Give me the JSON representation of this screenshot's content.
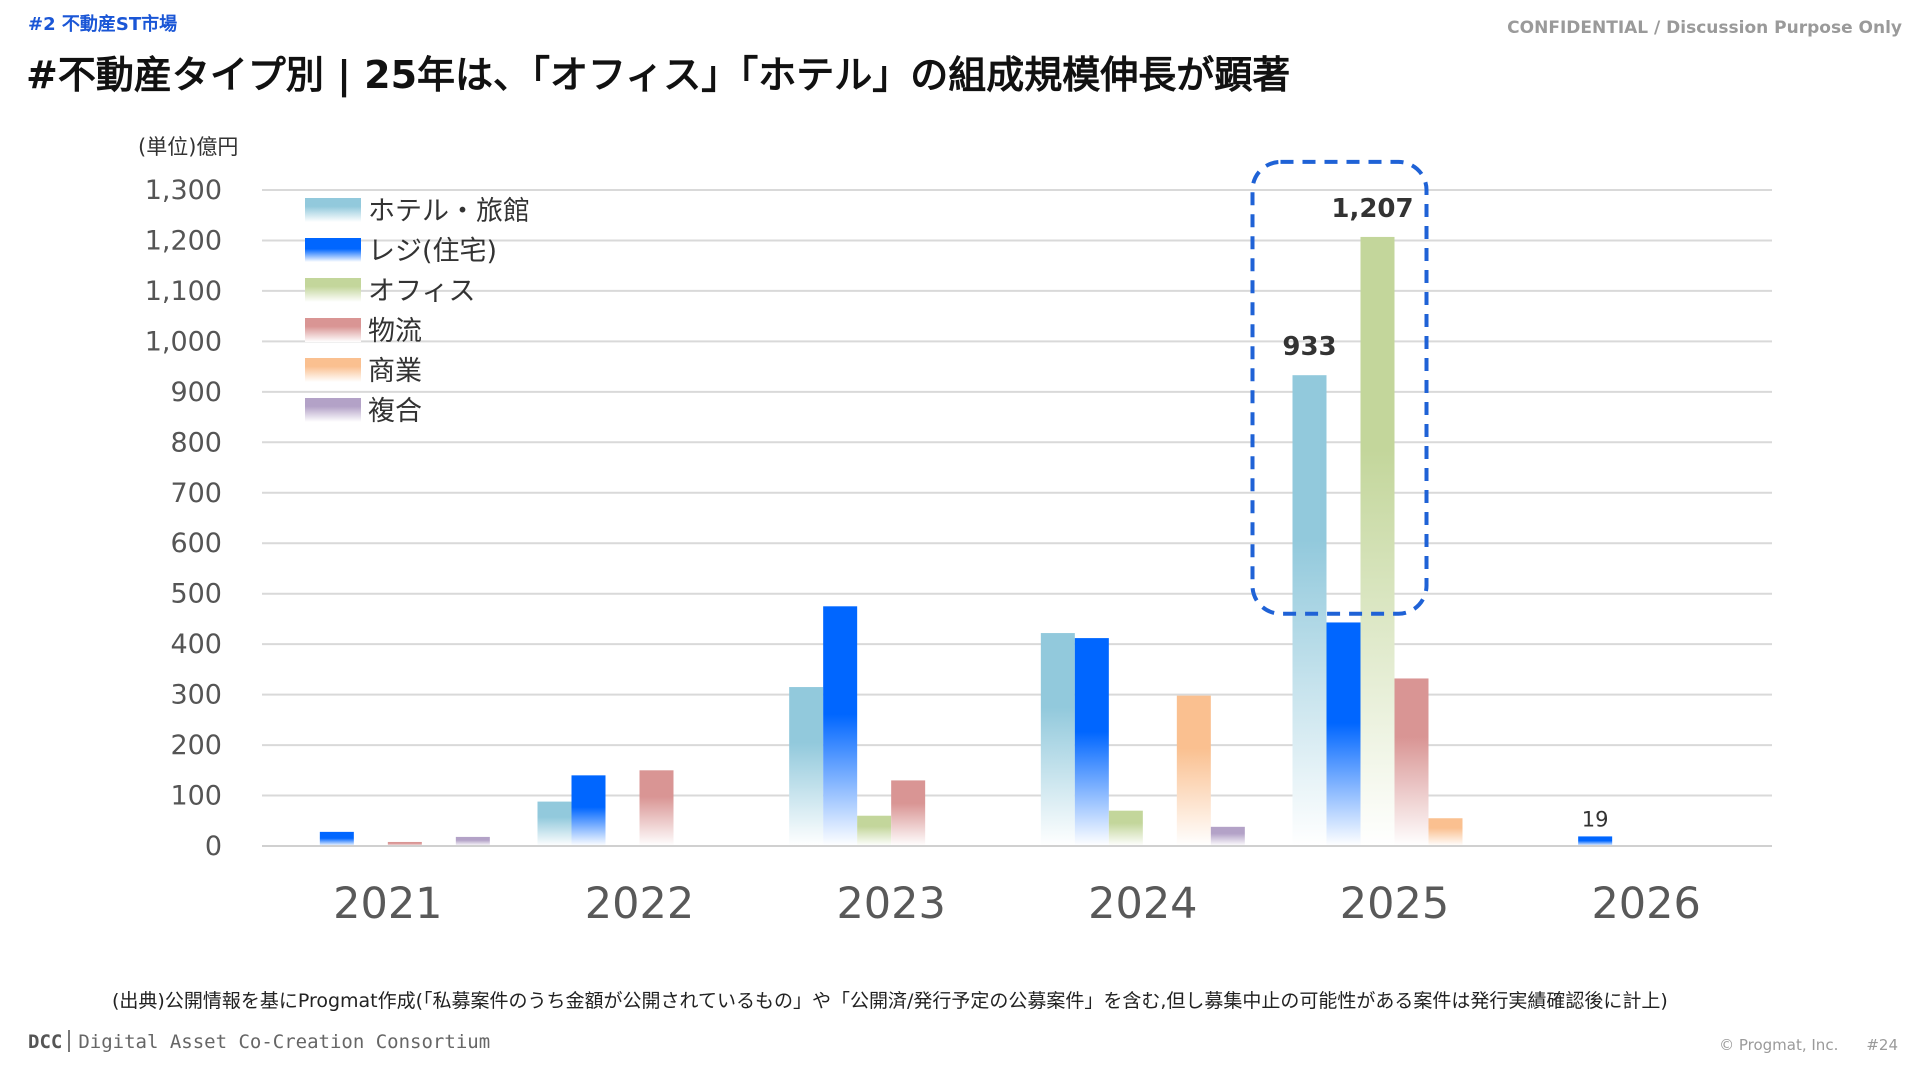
{
  "header": {
    "section_tag": "#2 不動産ST市場",
    "confidential": "CONFIDENTIAL / Discussion Purpose Only",
    "title": "#不動産タイプ別 | 25年は、「オフィス」「ホテル」の組成規模伸長が顕著"
  },
  "chart_data": {
    "type": "bar",
    "title": "",
    "unit_label": "(単位)億円",
    "categories": [
      "2021",
      "2022",
      "2023",
      "2024",
      "2025",
      "2026"
    ],
    "ylim": [
      0,
      1300
    ],
    "yticks": [
      0,
      100,
      200,
      300,
      400,
      500,
      600,
      700,
      800,
      900,
      1000,
      1100,
      1200,
      1300
    ],
    "ytick_labels": [
      "0",
      "100",
      "200",
      "300",
      "400",
      "500",
      "600",
      "700",
      "800",
      "900",
      "1,000",
      "1,100",
      "1,200",
      "1,300"
    ],
    "grid": true,
    "legend_position": "top-left",
    "series": [
      {
        "name": "ホテル・旅館",
        "color": "#92c9dc",
        "values": [
          0,
          88,
          315,
          422,
          933,
          0
        ]
      },
      {
        "name": "レジ(住宅)",
        "color": "#0066ff",
        "values": [
          28,
          140,
          475,
          412,
          443,
          19
        ]
      },
      {
        "name": "オフィス",
        "color": "#c3d69b",
        "values": [
          0,
          0,
          60,
          70,
          1207,
          0
        ]
      },
      {
        "name": "物流",
        "color": "#d99594",
        "values": [
          8,
          150,
          130,
          0,
          332,
          0
        ]
      },
      {
        "name": "商業",
        "color": "#fac090",
        "values": [
          0,
          0,
          0,
          298,
          55,
          0
        ]
      },
      {
        "name": "複合",
        "color": "#b3a2c7",
        "values": [
          18,
          0,
          0,
          38,
          0,
          0
        ]
      }
    ],
    "data_labels": [
      {
        "text": "933",
        "series": 0,
        "category": 4,
        "bold": true
      },
      {
        "text": "1,207",
        "series": 2,
        "category": 4,
        "bold": true
      },
      {
        "text": "19",
        "series": 1,
        "category": 5,
        "bold": false
      }
    ],
    "highlight": {
      "category": 4,
      "series": [
        0,
        2
      ],
      "color": "#1f62d6"
    }
  },
  "footer": {
    "source_note": "(出典)公開情報を基にProgmat作成(「私募案件のうち金額が公開されているもの」や「公開済/発行予定の公募案件」を含む,但し募集中止の可能性がある案件は発行実績確認後に計上)",
    "logo_mark": "DCC",
    "logo_text": "Digital Asset Co-Creation Consortium",
    "copyright": "© Progmat, Inc.",
    "page_number": "#24"
  }
}
